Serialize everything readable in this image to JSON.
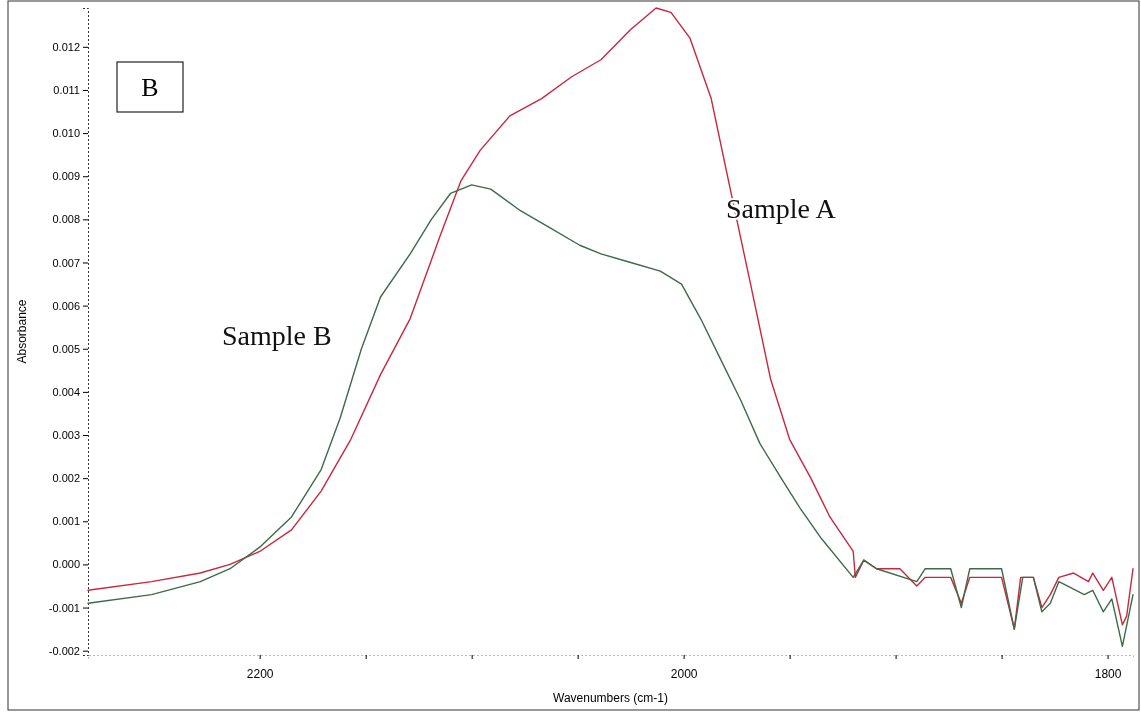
{
  "chart_data": {
    "type": "line",
    "xlabel": "Wavenumbers (cm-1)",
    "ylabel": "Absorbance",
    "xlim": [
      2281,
      1788
    ],
    "ylim": [
      -0.0021,
      0.0129
    ],
    "xticks": [
      2200,
      {
        "value": 2150,
        "label": null
      },
      {
        "value": 2100,
        "label": null
      },
      {
        "value": 2050,
        "label": null
      },
      2000,
      {
        "value": 1950,
        "label": null
      },
      {
        "value": 1900,
        "label": null
      },
      {
        "value": 1850,
        "label": null
      },
      1800
    ],
    "yticks": [
      {
        "value": -0.002,
        "label": "-0.002"
      },
      {
        "value": -0.001,
        "label": "-0.001"
      },
      {
        "value": 0,
        "label": "0.000"
      },
      {
        "value": 0.001,
        "label": "0.001"
      },
      {
        "value": 0.002,
        "label": "0.002"
      },
      {
        "value": 0.003,
        "label": "0.003"
      },
      {
        "value": 0.004,
        "label": "0.004"
      },
      {
        "value": 0.005,
        "label": "0.005"
      },
      {
        "value": 0.006,
        "label": "0.006"
      },
      {
        "value": 0.007,
        "label": "0.007"
      },
      {
        "value": 0.008,
        "label": "0.008"
      },
      {
        "value": 0.009,
        "label": "0.009"
      },
      {
        "value": 0.01,
        "label": "0.010"
      },
      {
        "value": 0.011,
        "label": "0.011"
      },
      {
        "value": 0.012,
        "label": "0.012"
      }
    ],
    "grid": false,
    "marker": "none",
    "line_style": "solid",
    "annotations": [
      "B"
    ],
    "series": [
      {
        "name": "Sample A",
        "color": "#c8283c",
        "x": [
          2281,
          2251,
          2228,
          2214,
          2200,
          2185,
          2171,
          2157,
          2143,
          2129,
          2115,
          2105,
          2096,
          2082,
          2067,
          2053,
          2039,
          2025,
          2013,
          2006,
          1997,
          1987,
          1978,
          1968,
          1959,
          1950,
          1940,
          1931,
          1920,
          1919,
          1915,
          1909,
          1898,
          1890,
          1886,
          1874,
          1869,
          1865,
          1850,
          1844,
          1841,
          1835,
          1831,
          1827,
          1823,
          1816,
          1809,
          1807,
          1802,
          1798,
          1793,
          1791,
          1788
        ],
        "values": [
          -0.0006,
          -0.0004,
          -0.0002,
          0,
          0.0003,
          0.0008,
          0.0017,
          0.0029,
          0.0044,
          0.0057,
          0.0076,
          0.0089,
          0.0096,
          0.0104,
          0.0108,
          0.0113,
          0.0117,
          0.0124,
          0.0129,
          0.0128,
          0.0122,
          0.0108,
          0.0087,
          0.0064,
          0.0043,
          0.0029,
          0.002,
          0.0011,
          0.0003,
          -0.0003,
          0.0001,
          -0.0001,
          -0.0001,
          -0.0005,
          -0.0003,
          -0.0003,
          -0.0009,
          -0.0003,
          -0.0003,
          -0.0015,
          -0.0003,
          -0.0003,
          -0.001,
          -0.0007,
          -0.0003,
          -0.0002,
          -0.0004,
          -0.0002,
          -0.0006,
          -0.0003,
          -0.0014,
          -0.0012,
          -0.0001
        ]
      },
      {
        "name": "Sample B",
        "color": "#3d6b4a",
        "x": [
          2281,
          2251,
          2228,
          2214,
          2200,
          2185,
          2171,
          2162,
          2152,
          2143,
          2129,
          2119,
          2110,
          2100,
          2091,
          2077,
          2063,
          2049,
          2039,
          2025,
          2011,
          2001,
          1992,
          1983,
          1973,
          1964,
          1954,
          1945,
          1935,
          1920,
          1915,
          1909,
          1890,
          1886,
          1874,
          1869,
          1865,
          1850,
          1844,
          1840,
          1835,
          1831,
          1827,
          1823,
          1819,
          1811,
          1807,
          1802,
          1798,
          1793,
          1788
        ],
        "values": [
          -0.0009,
          -0.0007,
          -0.0004,
          -0.0001,
          0.0004,
          0.0011,
          0.0022,
          0.0034,
          0.005,
          0.0062,
          0.0072,
          0.008,
          0.0086,
          0.0088,
          0.0087,
          0.0082,
          0.0078,
          0.0074,
          0.0072,
          0.007,
          0.0068,
          0.0065,
          0.0057,
          0.0048,
          0.0038,
          0.0028,
          0.002,
          0.0013,
          0.0006,
          -0.0003,
          0.0001,
          -0.0001,
          -0.0004,
          -0.0001,
          -0.0001,
          -0.001,
          -0.0001,
          -0.0001,
          -0.0015,
          -0.0003,
          -0.0003,
          -0.0011,
          -0.0009,
          -0.0004,
          -0.0005,
          -0.0007,
          -0.0006,
          -0.0011,
          -0.0008,
          -0.0019,
          -0.0007
        ]
      }
    ]
  }
}
